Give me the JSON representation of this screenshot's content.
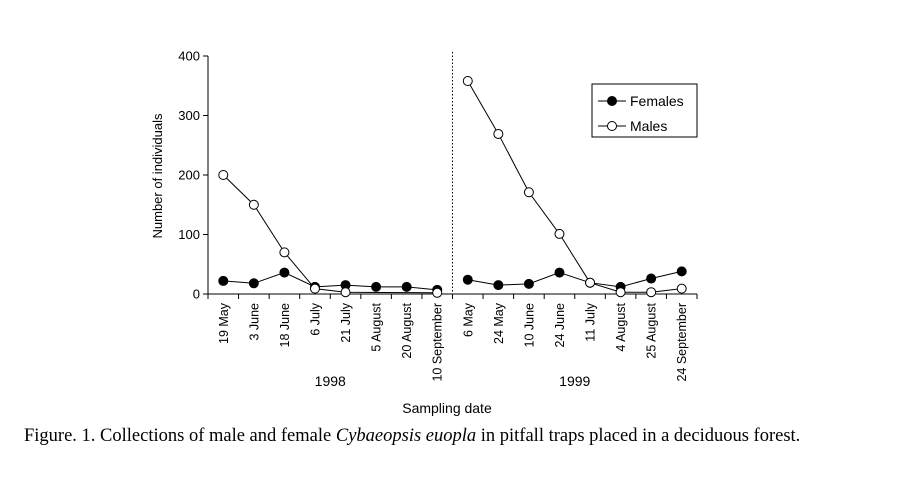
{
  "chart_data": {
    "type": "line",
    "xlabel": "Sampling date",
    "ylabel": "Number of individuals",
    "ylim": [
      0,
      400
    ],
    "yticks": [
      0,
      100,
      200,
      300,
      400
    ],
    "grid": false,
    "legend_position": "top-right",
    "year_groups": [
      {
        "label": "1998",
        "categories": [
          "19 May",
          "3 June",
          "18 June",
          "6 July",
          "21 July",
          "5 August",
          "20 August",
          "10 September"
        ]
      },
      {
        "label": "1999",
        "categories": [
          "6 May",
          "24 May",
          "10 June",
          "24 June",
          "11 July",
          "4 August",
          "25 August",
          "24 September"
        ]
      }
    ],
    "categories": [
      "19 May",
      "3 June",
      "18 June",
      "6 July",
      "21 July",
      "5 August",
      "20 August",
      "10 September",
      "6 May",
      "24 May",
      "10 June",
      "24 June",
      "11 July",
      "4 August",
      "25 August",
      "24 September"
    ],
    "series": [
      {
        "name": "Females",
        "marker": "filled-circle",
        "segments": [
          [
            22,
            18,
            36,
            12,
            15,
            12,
            12,
            7
          ],
          [
            24,
            15,
            17,
            36,
            19,
            12,
            26,
            38
          ]
        ]
      },
      {
        "name": "Males",
        "marker": "open-circle",
        "segments": [
          [
            200,
            150,
            70,
            9,
            3,
            null,
            null,
            2
          ],
          [
            358,
            269,
            171,
            101,
            19,
            3,
            3,
            9
          ]
        ]
      }
    ]
  },
  "caption": {
    "prefix": "Figure. 1. Collections of male and female ",
    "species": "Cybaeopsis euopla",
    "suffix": " in pitfall traps placed in a deciduous forest."
  }
}
